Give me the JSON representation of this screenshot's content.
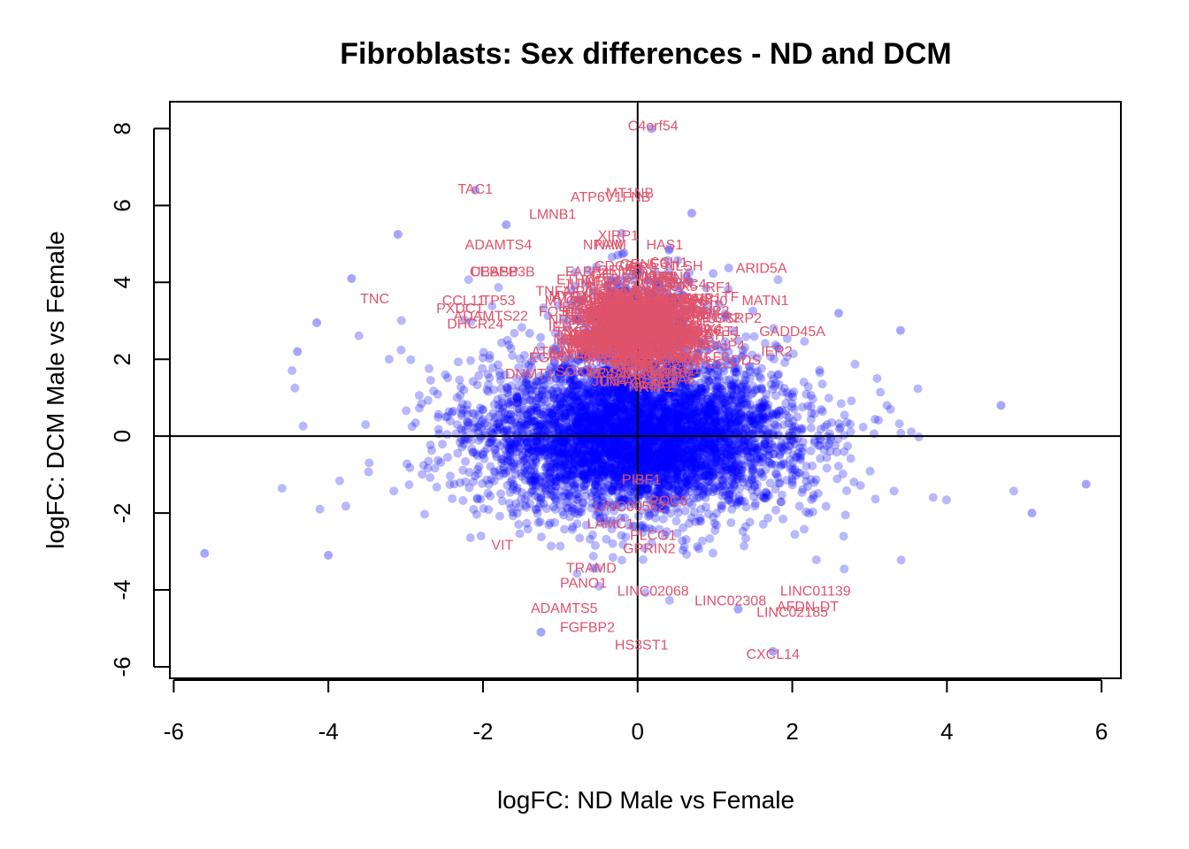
{
  "chart_data": {
    "type": "scatter",
    "title": "Fibroblasts: Sex differences - ND and DCM",
    "xlabel": "logFC: ND Male vs Female",
    "ylabel": "logFC: DCM Male vs Female",
    "xlim": [
      -6.05,
      6.25
    ],
    "ylim": [
      -6.3,
      8.7
    ],
    "xticks": [
      -6,
      -4,
      -2,
      0,
      2,
      4,
      6
    ],
    "yticks": [
      -6,
      -4,
      -2,
      0,
      2,
      4,
      6,
      8
    ],
    "reference_lines": {
      "h": 0,
      "v": 0
    },
    "colors": {
      "points": "#0000ff",
      "labels": "#df536b",
      "axes": "#000000"
    },
    "highlight_points": [
      {
        "x": 0.18,
        "y": 8.0
      },
      {
        "x": -2.1,
        "y": 6.4
      },
      {
        "x": -1.7,
        "y": 5.5
      },
      {
        "x": -3.1,
        "y": 5.25
      },
      {
        "x": 0.7,
        "y": 5.8
      },
      {
        "x": -3.7,
        "y": 4.1
      },
      {
        "x": -4.15,
        "y": 2.95
      },
      {
        "x": 1.75,
        "y": -5.6
      },
      {
        "x": -1.25,
        "y": -5.1
      },
      {
        "x": 5.8,
        "y": -1.25
      },
      {
        "x": -5.6,
        "y": -3.05
      },
      {
        "x": 5.1,
        "y": -2.0
      },
      {
        "x": 4.7,
        "y": 0.8
      },
      {
        "x": -4.4,
        "y": 2.2
      },
      {
        "x": 2.6,
        "y": 3.2
      },
      {
        "x": 3.4,
        "y": 2.75
      },
      {
        "x": -4.0,
        "y": -3.1
      },
      {
        "x": 1.3,
        "y": -4.5
      }
    ],
    "annotations": [
      {
        "text": "C4orf54",
        "x": 0.2,
        "y": 8.05
      },
      {
        "text": "TAC1",
        "x": -2.1,
        "y": 6.4
      },
      {
        "text": "MT1NB",
        "x": -0.1,
        "y": 6.3
      },
      {
        "text": "ATP6V1FNB",
        "x": -0.35,
        "y": 6.2
      },
      {
        "text": "LMNB1",
        "x": -1.1,
        "y": 5.75
      },
      {
        "text": "XIRP1",
        "x": -0.25,
        "y": 5.2
      },
      {
        "text": "ADAMTS4",
        "x": -1.8,
        "y": 4.95
      },
      {
        "text": "NPAM",
        "x": -0.45,
        "y": 4.95
      },
      {
        "text": "NAM",
        "x": -0.35,
        "y": 4.95
      },
      {
        "text": "HAS1",
        "x": 0.35,
        "y": 4.95
      },
      {
        "text": "CCH1",
        "x": 0.4,
        "y": 4.5
      },
      {
        "text": "CDC7A",
        "x": -0.25,
        "y": 4.4
      },
      {
        "text": "NLSH",
        "x": 0.6,
        "y": 4.4
      },
      {
        "text": "ARID5A",
        "x": 1.6,
        "y": 4.35
      },
      {
        "text": "CEBPB3B",
        "x": -1.75,
        "y": 4.25
      },
      {
        "text": "UBASP",
        "x": -1.85,
        "y": 4.25
      },
      {
        "text": "FABP4",
        "x": -0.65,
        "y": 4.25
      },
      {
        "text": "ETHC",
        "x": -0.8,
        "y": 4.05
      },
      {
        "text": "RF1",
        "x": 1.05,
        "y": 3.85
      },
      {
        "text": "TNC",
        "x": -3.4,
        "y": 3.55
      },
      {
        "text": "MATN1",
        "x": 1.65,
        "y": 3.5
      },
      {
        "text": "TF",
        "x": 1.2,
        "y": 3.6
      },
      {
        "text": "CCL11",
        "x": -2.25,
        "y": 3.5
      },
      {
        "text": "TP53",
        "x": -1.8,
        "y": 3.5
      },
      {
        "text": "PXDC1",
        "x": -2.3,
        "y": 3.3
      },
      {
        "text": "ADAMTS22",
        "x": -1.9,
        "y": 3.1
      },
      {
        "text": "CSRP2",
        "x": 1.3,
        "y": 3.05
      },
      {
        "text": "DHCR24",
        "x": -2.1,
        "y": 2.9
      },
      {
        "text": "GADD45A",
        "x": 2.0,
        "y": 2.7
      },
      {
        "text": "ACT1",
        "x": 1.1,
        "y": 2.7
      },
      {
        "text": "DNMT1",
        "x": -1.4,
        "y": 1.6
      },
      {
        "text": "DDS",
        "x": 1.4,
        "y": 1.95
      },
      {
        "text": "PIBF1",
        "x": 0.05,
        "y": -1.15
      },
      {
        "text": "POC6",
        "x": 0.4,
        "y": -1.7
      },
      {
        "text": "LINC00562",
        "x": -0.1,
        "y": -1.85
      },
      {
        "text": "LAMC1",
        "x": -0.35,
        "y": -2.3
      },
      {
        "text": "PLCG1",
        "x": 0.2,
        "y": -2.6
      },
      {
        "text": "VIT",
        "x": -1.75,
        "y": -2.85
      },
      {
        "text": "GPRIN2",
        "x": 0.15,
        "y": -2.95
      },
      {
        "text": "TRAMD",
        "x": -0.6,
        "y": -3.45
      },
      {
        "text": "LINC01139",
        "x": 2.3,
        "y": -4.05
      },
      {
        "text": "PANO1",
        "x": -0.7,
        "y": -3.85
      },
      {
        "text": "LINC02068",
        "x": 0.2,
        "y": -4.05
      },
      {
        "text": "LINC02308",
        "x": 1.2,
        "y": -4.3
      },
      {
        "text": "AFDN-DT",
        "x": 2.2,
        "y": -4.45
      },
      {
        "text": "ADAMTS5",
        "x": -0.95,
        "y": -4.5
      },
      {
        "text": "LINC02185",
        "x": 2.0,
        "y": -4.6
      },
      {
        "text": "FGFBP2",
        "x": -0.65,
        "y": -5.0
      },
      {
        "text": "HS3ST1",
        "x": 0.05,
        "y": -5.45
      },
      {
        "text": "CXCL14",
        "x": 1.75,
        "y": -5.7
      }
    ]
  }
}
